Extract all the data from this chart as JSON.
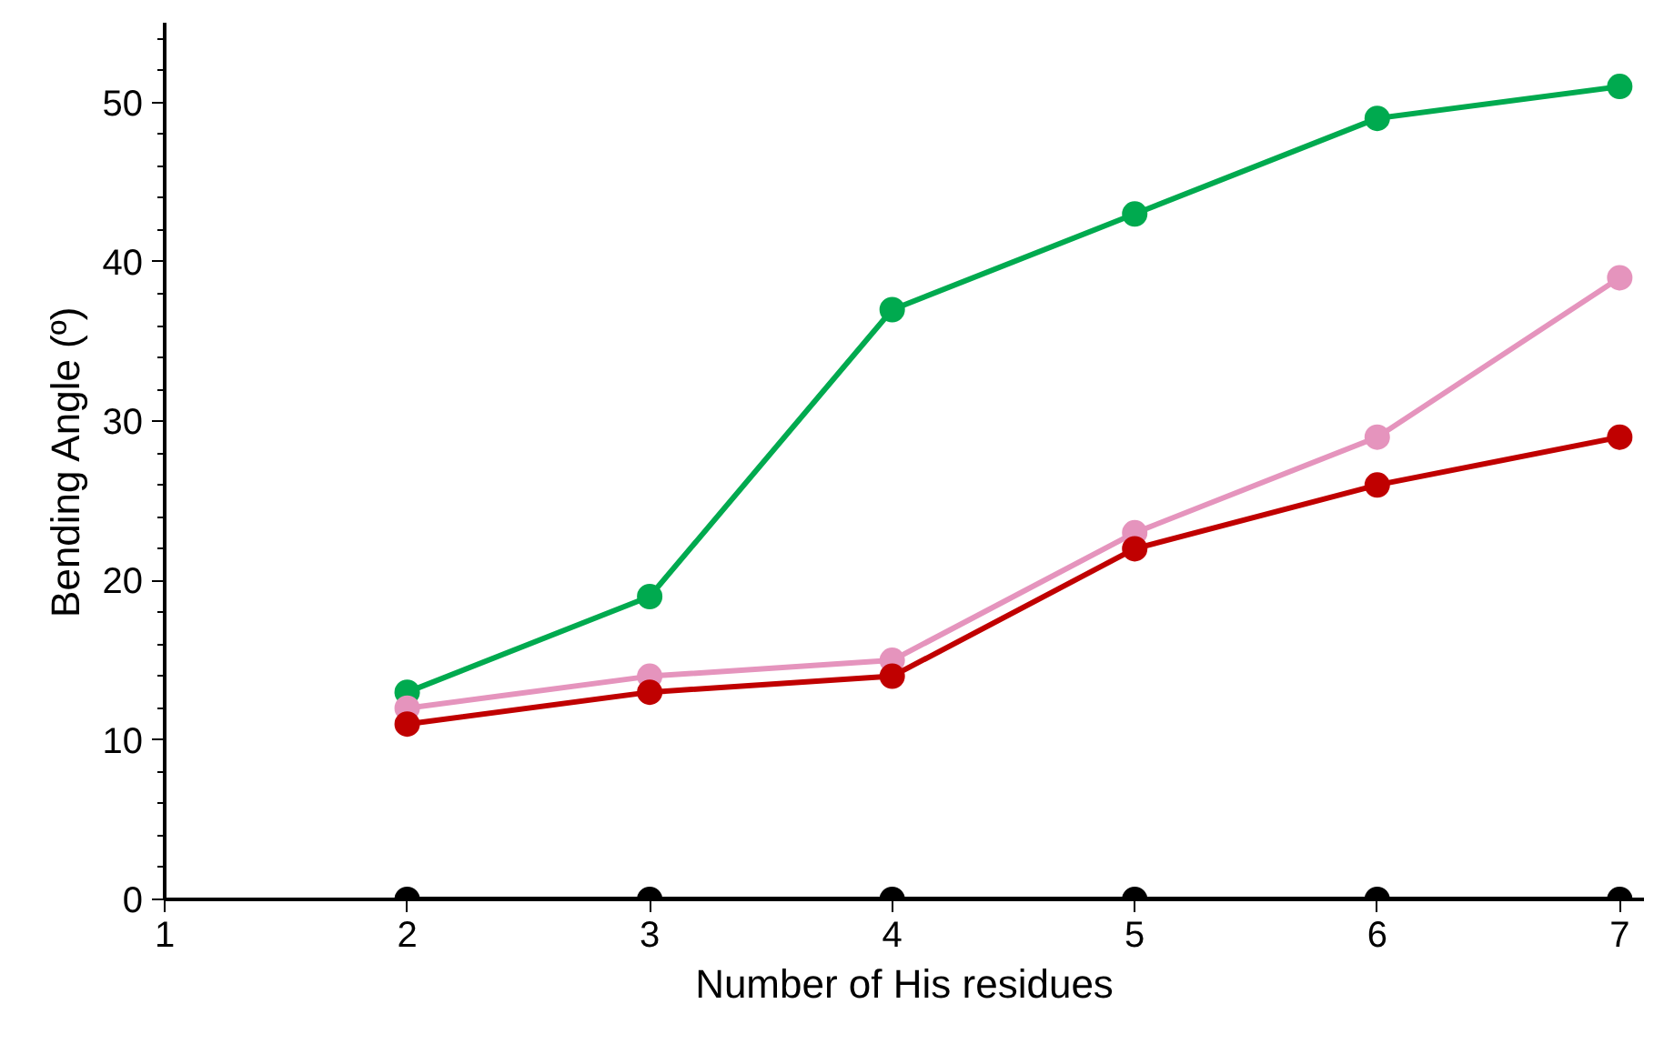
{
  "chart_data": {
    "type": "line",
    "xlabel": "Number of His residues",
    "ylabel": "Bending Angle (º)",
    "x": [
      2,
      3,
      4,
      5,
      6,
      7
    ],
    "series": [
      {
        "color": "#00aa4f",
        "values": [
          13,
          19,
          37,
          43,
          49,
          51
        ]
      },
      {
        "color": "#e594bd",
        "values": [
          12,
          14,
          15,
          23,
          29,
          39
        ]
      },
      {
        "color": "#c00000",
        "values": [
          11,
          13,
          14,
          22,
          26,
          29
        ]
      },
      {
        "color": "#000000",
        "values": [
          0,
          0,
          0,
          0,
          0,
          0
        ]
      }
    ],
    "xlim": [
      1,
      7.1
    ],
    "ylim": [
      0,
      55
    ],
    "xticks": [
      1,
      2,
      3,
      4,
      5,
      6,
      7
    ],
    "yticks": [
      0,
      10,
      20,
      30,
      40,
      50
    ],
    "marker": "circle",
    "line_style": "solid"
  }
}
